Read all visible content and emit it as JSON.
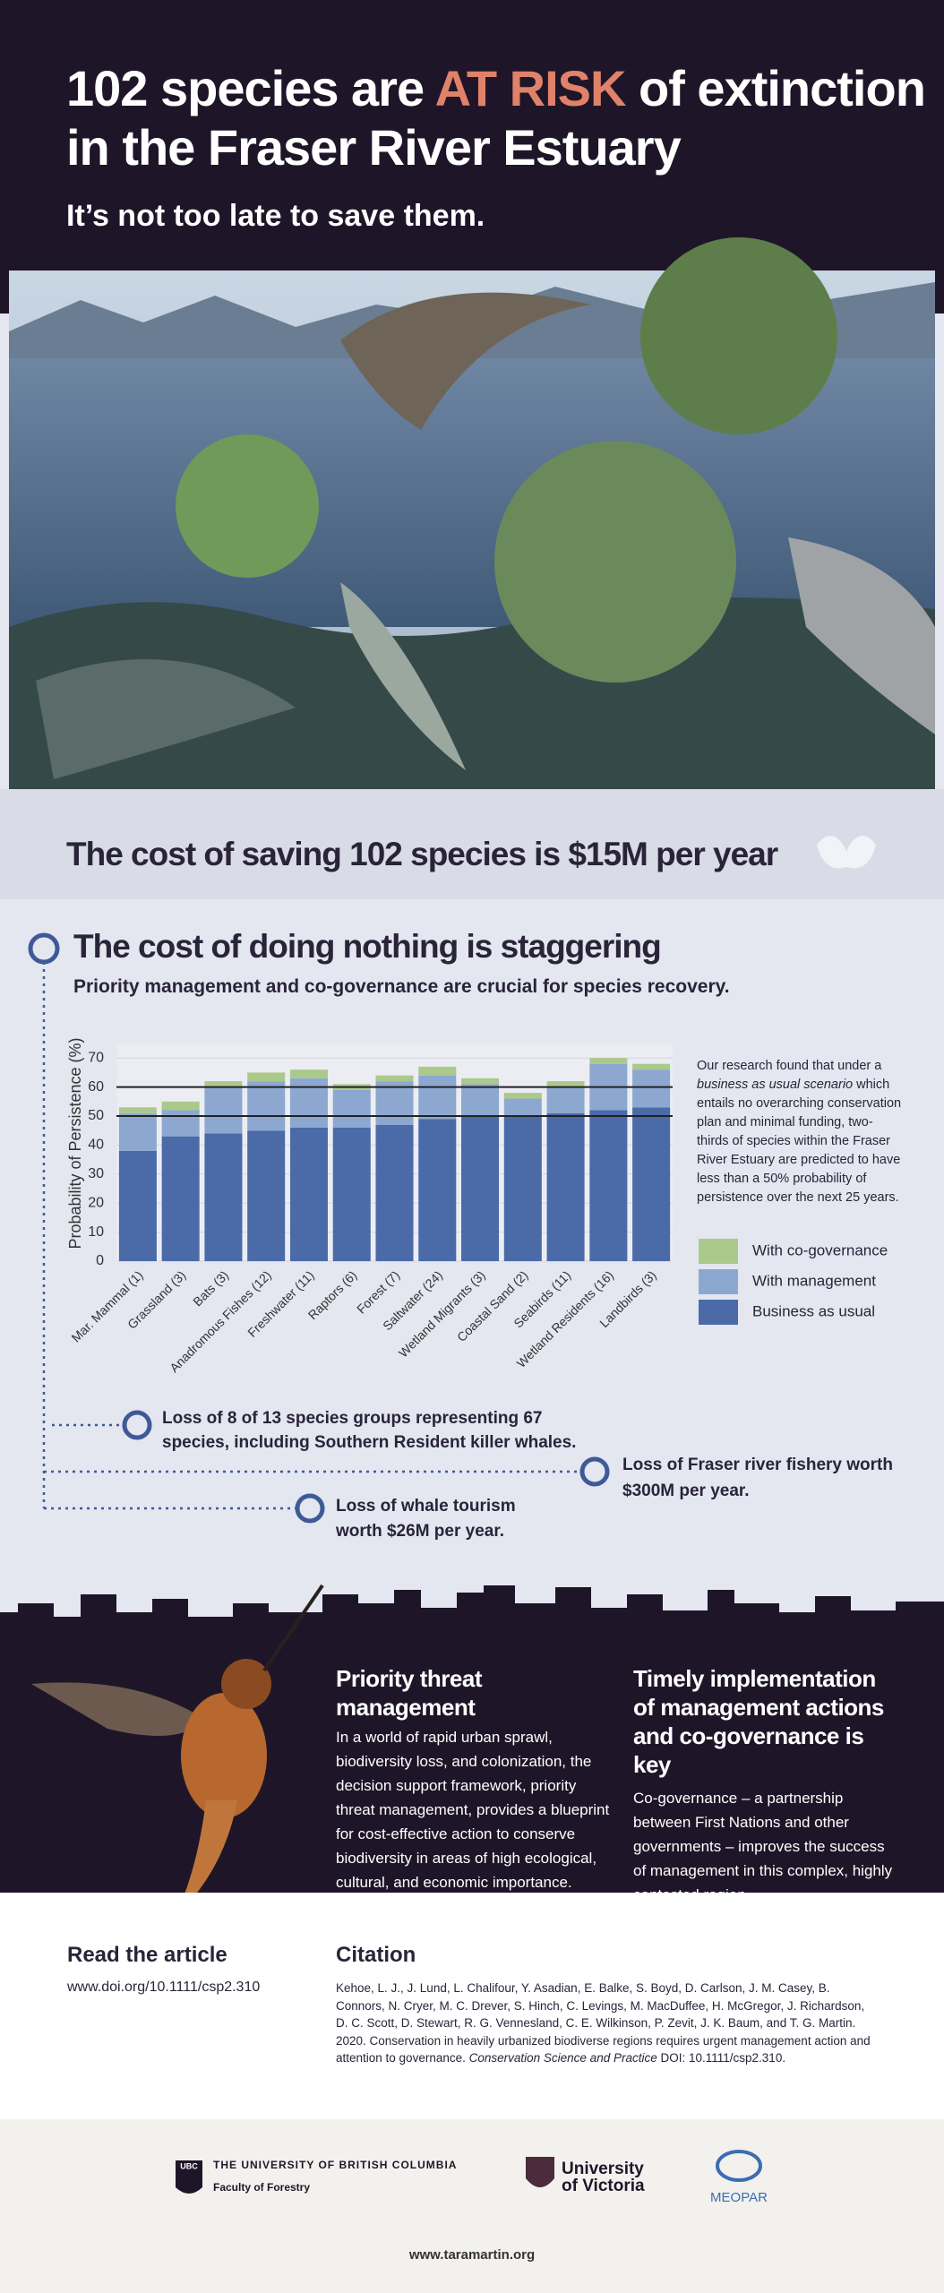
{
  "header": {
    "title_before": "102 species are",
    "title_highlight": "AT RISK",
    "title_after": "of extinction",
    "title_line2": "in the Fraser River Estuary",
    "subtitle": "It’s not too late to save them."
  },
  "cost_banner": "The cost of saving 102 species is $15M per year",
  "section": {
    "heading": "The cost of doing nothing is staggering",
    "subheading": "Priority management and co-governance are crucial for species recovery."
  },
  "chart_data": {
    "type": "stacked_bar",
    "y_label": "Probability of Persistence (%)",
    "categories": [
      "Mar. Mammal (1)",
      "Grassland (3)",
      "Bats (3)",
      "Anadromous Fishes (12)",
      "Freshwater (11)",
      "Raptors (6)",
      "Forest (7)",
      "Saltwater (24)",
      "Wetland Migrants (3)",
      "Coastal Sand (2)",
      "Seabirds (11)",
      "Wetland Residents (16)",
      "Landbirds (3)"
    ],
    "series": [
      {
        "name": "Business as usual",
        "color": "#4a6aa8",
        "values": [
          38,
          43,
          44,
          45,
          46,
          46,
          47,
          49,
          50,
          50,
          51,
          52,
          53
        ]
      },
      {
        "name": "With management",
        "color": "#8ca8d0",
        "values": [
          13,
          9,
          16,
          17,
          17,
          13,
          15,
          15,
          11,
          6,
          9,
          16,
          13
        ]
      },
      {
        "name": "With co-governance",
        "color": "#acc98c",
        "values": [
          2,
          3,
          2,
          3,
          3,
          2,
          2,
          3,
          2,
          2,
          2,
          2,
          2
        ]
      }
    ],
    "ylim": [
      0,
      75
    ],
    "yticks": [
      0,
      10,
      20,
      30,
      40,
      50,
      60,
      70
    ],
    "grid": true,
    "reference_lines": [
      60,
      50
    ],
    "legend": "right",
    "note_before": "Our research found that under a ",
    "note_italic": "business as usual scenario",
    "note_after": " which entails no overarching conservation plan and minimal funding, two-thirds of species within the Fraser River Estuary are predicted to have less than a 50% probability of persistence over the next 25 years."
  },
  "losses": [
    "Loss of 8 of 13 species groups representing 67 species, including Southern Resident killer whales.",
    "Loss of Fraser river fishery worth $300M per year.",
    "Loss of whale tourism worth $26M per year."
  ],
  "columns": [
    {
      "heading": "Priority threat management",
      "body": "In a world of rapid urban sprawl, biodiversity loss, and colonization, the decision support framework, priority threat management, provides a blueprint for cost-effective action to conserve biodiversity in areas of high ecological, cultural, and economic importance."
    },
    {
      "heading": "Timely implementation of management actions and co-governance is key",
      "body": "Co-governance – a partnership between First Nations and other governments – improves the success of management in this complex, highly contested region."
    }
  ],
  "article": {
    "heading": "Read the article",
    "url": "www.doi.org/10.1111/csp2.310"
  },
  "citation": {
    "heading": "Citation",
    "text_before": "Kehoe, L. J., J. Lund, L. Chalifour, Y. Asadian, E. Balke, S. Boyd, D. Carlson, J. M. Casey, B. Connors, N. Cryer, M. C. Drever, S. Hinch, C. Levings, M. MacDuffee, H. McGregor, J. Richardson, D. C. Scott, D. Stewart, R. G. Vennesland, C. E. Wilkinson, P. Zevit, J. K. Baum, and T. G. Martin. 2020. Conservation in heavily urbanized biodiverse regions requires urgent management action and attention to governance. ",
    "journal": "Conservation Science and Practice",
    "text_after": " DOI: 10.1111/csp2.310."
  },
  "footer": {
    "ubc_mark": "UBC",
    "ubc_name": "THE UNIVERSITY OF BRITISH COLUMBIA",
    "ubc_faculty": "Faculty of Forestry",
    "uvic_line1": "University",
    "uvic_line2": "of Victoria",
    "meopar": "MEOPAR",
    "website": "www.taramartin.org"
  }
}
